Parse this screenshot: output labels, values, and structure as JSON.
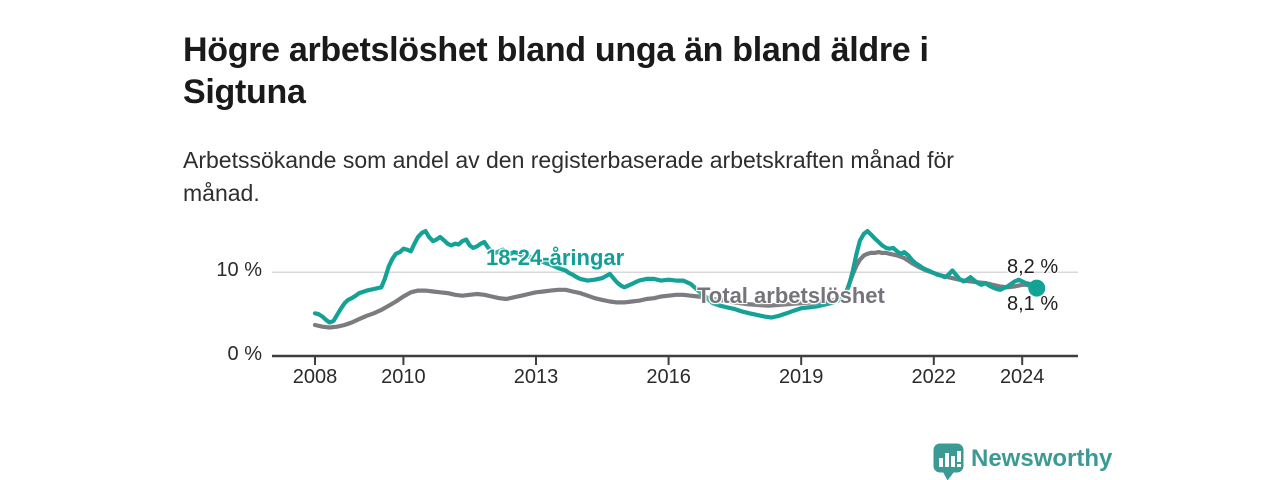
{
  "header": {
    "title": "Högre arbetslöshet bland unga än bland äldre i Sigtuna",
    "subtitle": "Arbetssökande som andel av den registerbaserade arbetskraften månad för månad."
  },
  "footer": {
    "brand": "Newsworthy",
    "brand_color": "#3c9a94",
    "logo_icon": "bar-chart-map-pin-icon"
  },
  "chart_data": {
    "type": "line",
    "title": "Högre arbetslöshet bland unga än bland äldre i Sigtuna",
    "subtitle": "Arbetssökande som andel av den registerbaserade arbetskraften månad för månad.",
    "xlabel": "",
    "ylabel": "",
    "xlim": [
      2007.0,
      2025.3
    ],
    "ylim": [
      0,
      17
    ],
    "grid": "single-horizontal-gridline-at-10",
    "legend_position": "inline-labels-on-chart",
    "x_ticks": [
      2008,
      2010,
      2013,
      2016,
      2019,
      2022,
      2024
    ],
    "x_tick_labels": [
      "2008",
      "2010",
      "2013",
      "2016",
      "2019",
      "2022",
      "2024"
    ],
    "y_ticks": [
      {
        "value": 0,
        "label": "0 %"
      },
      {
        "value": 10,
        "label": "10 %"
      }
    ],
    "axis_color": "#3f3f3f",
    "gridline_color": "#d8d8d8",
    "series": [
      {
        "name": "18-24-åringar",
        "color": "#14a296",
        "last_value": 8.1,
        "last_value_label": "8,1 %",
        "points": [
          [
            2008.0,
            5.1
          ],
          [
            2008.08,
            5.0
          ],
          [
            2008.17,
            4.7
          ],
          [
            2008.25,
            4.3
          ],
          [
            2008.33,
            4.0
          ],
          [
            2008.42,
            4.2
          ],
          [
            2008.5,
            4.9
          ],
          [
            2008.58,
            5.6
          ],
          [
            2008.67,
            6.3
          ],
          [
            2008.75,
            6.7
          ],
          [
            2008.83,
            6.9
          ],
          [
            2008.92,
            7.2
          ],
          [
            2009.0,
            7.5
          ],
          [
            2009.17,
            7.8
          ],
          [
            2009.33,
            8.0
          ],
          [
            2009.5,
            8.2
          ],
          [
            2009.58,
            9.2
          ],
          [
            2009.67,
            10.7
          ],
          [
            2009.75,
            11.6
          ],
          [
            2009.83,
            12.2
          ],
          [
            2009.92,
            12.4
          ],
          [
            2010.0,
            12.8
          ],
          [
            2010.08,
            12.7
          ],
          [
            2010.17,
            12.5
          ],
          [
            2010.25,
            13.4
          ],
          [
            2010.33,
            14.2
          ],
          [
            2010.42,
            14.7
          ],
          [
            2010.5,
            14.9
          ],
          [
            2010.58,
            14.2
          ],
          [
            2010.67,
            13.7
          ],
          [
            2010.75,
            13.9
          ],
          [
            2010.83,
            14.2
          ],
          [
            2010.92,
            13.8
          ],
          [
            2011.0,
            13.4
          ],
          [
            2011.08,
            13.2
          ],
          [
            2011.17,
            13.4
          ],
          [
            2011.25,
            13.3
          ],
          [
            2011.33,
            13.7
          ],
          [
            2011.42,
            13.9
          ],
          [
            2011.5,
            13.2
          ],
          [
            2011.58,
            12.9
          ],
          [
            2011.67,
            13.1
          ],
          [
            2011.75,
            13.4
          ],
          [
            2011.83,
            13.6
          ],
          [
            2011.92,
            12.9
          ],
          [
            2012.0,
            12.5
          ],
          [
            2012.08,
            12.3
          ],
          [
            2012.17,
            12.5
          ],
          [
            2012.25,
            12.7
          ],
          [
            2012.33,
            12.4
          ],
          [
            2012.42,
            12.2
          ],
          [
            2012.5,
            12.4
          ],
          [
            2012.58,
            12.3
          ],
          [
            2012.67,
            12.0
          ],
          [
            2012.75,
            11.8
          ],
          [
            2012.83,
            11.9
          ],
          [
            2012.92,
            11.7
          ],
          [
            2013.0,
            11.5
          ],
          [
            2013.17,
            11.2
          ],
          [
            2013.33,
            10.9
          ],
          [
            2013.5,
            10.5
          ],
          [
            2013.67,
            10.2
          ],
          [
            2013.75,
            9.9
          ],
          [
            2013.83,
            9.7
          ],
          [
            2013.92,
            9.4
          ],
          [
            2014.0,
            9.2
          ],
          [
            2014.17,
            9.0
          ],
          [
            2014.33,
            9.1
          ],
          [
            2014.5,
            9.3
          ],
          [
            2014.67,
            9.8
          ],
          [
            2014.83,
            8.8
          ],
          [
            2014.92,
            8.4
          ],
          [
            2015.0,
            8.2
          ],
          [
            2015.17,
            8.6
          ],
          [
            2015.33,
            9.0
          ],
          [
            2015.5,
            9.2
          ],
          [
            2015.67,
            9.2
          ],
          [
            2015.83,
            9.0
          ],
          [
            2016.0,
            9.1
          ],
          [
            2016.17,
            9.0
          ],
          [
            2016.33,
            9.0
          ],
          [
            2016.5,
            8.6
          ],
          [
            2016.67,
            7.8
          ],
          [
            2016.83,
            7.1
          ],
          [
            2017.0,
            6.3
          ],
          [
            2017.17,
            6.0
          ],
          [
            2017.33,
            5.8
          ],
          [
            2017.5,
            5.6
          ],
          [
            2017.67,
            5.3
          ],
          [
            2017.83,
            5.1
          ],
          [
            2018.0,
            4.9
          ],
          [
            2018.17,
            4.7
          ],
          [
            2018.33,
            4.6
          ],
          [
            2018.5,
            4.8
          ],
          [
            2018.67,
            5.1
          ],
          [
            2018.83,
            5.4
          ],
          [
            2019.0,
            5.7
          ],
          [
            2019.17,
            5.8
          ],
          [
            2019.33,
            5.9
          ],
          [
            2019.5,
            6.1
          ],
          [
            2019.67,
            6.3
          ],
          [
            2019.83,
            6.6
          ],
          [
            2019.92,
            6.9
          ],
          [
            2020.0,
            7.3
          ],
          [
            2020.08,
            8.4
          ],
          [
            2020.17,
            10.2
          ],
          [
            2020.25,
            12.2
          ],
          [
            2020.33,
            13.8
          ],
          [
            2020.42,
            14.6
          ],
          [
            2020.5,
            14.9
          ],
          [
            2020.58,
            14.5
          ],
          [
            2020.67,
            14.0
          ],
          [
            2020.75,
            13.6
          ],
          [
            2020.83,
            13.2
          ],
          [
            2020.92,
            12.9
          ],
          [
            2021.0,
            12.8
          ],
          [
            2021.08,
            12.9
          ],
          [
            2021.17,
            12.5
          ],
          [
            2021.25,
            12.2
          ],
          [
            2021.33,
            12.4
          ],
          [
            2021.42,
            12.0
          ],
          [
            2021.5,
            11.5
          ],
          [
            2021.58,
            11.1
          ],
          [
            2021.67,
            10.8
          ],
          [
            2021.75,
            10.5
          ],
          [
            2021.83,
            10.3
          ],
          [
            2021.92,
            10.1
          ],
          [
            2022.0,
            9.9
          ],
          [
            2022.08,
            9.7
          ],
          [
            2022.17,
            9.6
          ],
          [
            2022.25,
            9.4
          ],
          [
            2022.33,
            9.7
          ],
          [
            2022.42,
            10.2
          ],
          [
            2022.5,
            9.7
          ],
          [
            2022.58,
            9.2
          ],
          [
            2022.67,
            8.9
          ],
          [
            2022.75,
            9.1
          ],
          [
            2022.83,
            9.4
          ],
          [
            2022.92,
            9.0
          ],
          [
            2023.0,
            8.7
          ],
          [
            2023.08,
            8.5
          ],
          [
            2023.17,
            8.7
          ],
          [
            2023.25,
            8.4
          ],
          [
            2023.33,
            8.2
          ],
          [
            2023.42,
            8.0
          ],
          [
            2023.5,
            7.9
          ],
          [
            2023.58,
            8.1
          ],
          [
            2023.67,
            8.3
          ],
          [
            2023.75,
            8.6
          ],
          [
            2023.83,
            8.9
          ],
          [
            2023.92,
            9.1
          ],
          [
            2024.0,
            8.9
          ],
          [
            2024.08,
            8.7
          ],
          [
            2024.17,
            8.6
          ],
          [
            2024.25,
            8.4
          ],
          [
            2024.33,
            8.1
          ]
        ]
      },
      {
        "name": "Total arbetslöshet",
        "color": "#7c7c80",
        "last_value": 8.2,
        "last_value_label": "8,2 %",
        "points": [
          [
            2008.0,
            3.7
          ],
          [
            2008.17,
            3.5
          ],
          [
            2008.33,
            3.4
          ],
          [
            2008.5,
            3.5
          ],
          [
            2008.67,
            3.7
          ],
          [
            2008.83,
            4.0
          ],
          [
            2009.0,
            4.4
          ],
          [
            2009.17,
            4.8
          ],
          [
            2009.33,
            5.1
          ],
          [
            2009.5,
            5.5
          ],
          [
            2009.67,
            6.0
          ],
          [
            2009.83,
            6.5
          ],
          [
            2010.0,
            7.1
          ],
          [
            2010.17,
            7.6
          ],
          [
            2010.33,
            7.8
          ],
          [
            2010.5,
            7.8
          ],
          [
            2010.67,
            7.7
          ],
          [
            2010.83,
            7.6
          ],
          [
            2011.0,
            7.5
          ],
          [
            2011.17,
            7.3
          ],
          [
            2011.33,
            7.2
          ],
          [
            2011.5,
            7.3
          ],
          [
            2011.67,
            7.4
          ],
          [
            2011.83,
            7.3
          ],
          [
            2012.0,
            7.1
          ],
          [
            2012.17,
            6.9
          ],
          [
            2012.33,
            6.8
          ],
          [
            2012.5,
            7.0
          ],
          [
            2012.67,
            7.2
          ],
          [
            2012.83,
            7.4
          ],
          [
            2013.0,
            7.6
          ],
          [
            2013.17,
            7.7
          ],
          [
            2013.33,
            7.8
          ],
          [
            2013.5,
            7.9
          ],
          [
            2013.67,
            7.9
          ],
          [
            2013.83,
            7.7
          ],
          [
            2014.0,
            7.5
          ],
          [
            2014.17,
            7.2
          ],
          [
            2014.33,
            6.9
          ],
          [
            2014.5,
            6.7
          ],
          [
            2014.67,
            6.5
          ],
          [
            2014.83,
            6.4
          ],
          [
            2015.0,
            6.4
          ],
          [
            2015.17,
            6.5
          ],
          [
            2015.33,
            6.6
          ],
          [
            2015.5,
            6.8
          ],
          [
            2015.67,
            6.9
          ],
          [
            2015.83,
            7.1
          ],
          [
            2016.0,
            7.2
          ],
          [
            2016.17,
            7.3
          ],
          [
            2016.33,
            7.3
          ],
          [
            2016.5,
            7.2
          ],
          [
            2016.67,
            7.1
          ],
          [
            2016.83,
            7.0
          ],
          [
            2017.0,
            6.8
          ],
          [
            2017.25,
            6.6
          ],
          [
            2017.5,
            6.4
          ],
          [
            2017.75,
            6.2
          ],
          [
            2018.0,
            6.1
          ],
          [
            2018.25,
            6.0
          ],
          [
            2018.5,
            6.1
          ],
          [
            2018.75,
            6.2
          ],
          [
            2019.0,
            6.3
          ],
          [
            2019.25,
            6.4
          ],
          [
            2019.5,
            6.5
          ],
          [
            2019.75,
            6.7
          ],
          [
            2019.92,
            7.0
          ],
          [
            2020.0,
            7.4
          ],
          [
            2020.08,
            8.5
          ],
          [
            2020.17,
            9.8
          ],
          [
            2020.25,
            10.8
          ],
          [
            2020.33,
            11.5
          ],
          [
            2020.42,
            12.0
          ],
          [
            2020.5,
            12.2
          ],
          [
            2020.58,
            12.3
          ],
          [
            2020.67,
            12.3
          ],
          [
            2020.75,
            12.4
          ],
          [
            2020.83,
            12.3
          ],
          [
            2020.92,
            12.3
          ],
          [
            2021.0,
            12.2
          ],
          [
            2021.17,
            12.0
          ],
          [
            2021.33,
            11.7
          ],
          [
            2021.5,
            11.1
          ],
          [
            2021.67,
            10.6
          ],
          [
            2021.83,
            10.2
          ],
          [
            2022.0,
            9.9
          ],
          [
            2022.17,
            9.6
          ],
          [
            2022.33,
            9.4
          ],
          [
            2022.5,
            9.2
          ],
          [
            2022.67,
            9.0
          ],
          [
            2022.83,
            8.9
          ],
          [
            2023.0,
            8.8
          ],
          [
            2023.17,
            8.7
          ],
          [
            2023.33,
            8.5
          ],
          [
            2023.5,
            8.3
          ],
          [
            2023.67,
            8.2
          ],
          [
            2023.83,
            8.3
          ],
          [
            2024.0,
            8.5
          ],
          [
            2024.08,
            8.5
          ],
          [
            2024.17,
            8.4
          ],
          [
            2024.25,
            8.3
          ],
          [
            2024.33,
            8.2
          ]
        ]
      }
    ],
    "end_dot": {
      "series": "18-24-åringar",
      "x": 2024.33,
      "value": 8.1
    }
  }
}
